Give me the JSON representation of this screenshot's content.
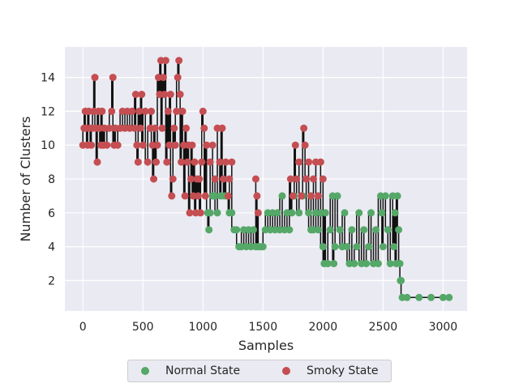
{
  "chart_data": {
    "type": "line",
    "title": "",
    "xlabel": "Samples",
    "ylabel": "Number of Clusters",
    "xlim": [
      -150,
      3200
    ],
    "ylim": [
      0.2,
      15.8
    ],
    "xticks": [
      0,
      500,
      1000,
      1500,
      2000,
      2500,
      3000
    ],
    "yticks": [
      2,
      4,
      6,
      8,
      10,
      12,
      14
    ],
    "grid": true,
    "legend_position": "bottom-center",
    "colors": {
      "background": "#eaeaf2",
      "grid": "#ffffff",
      "line": "#111111",
      "normal": "#55a868",
      "smoky": "#c44e52"
    },
    "series": [
      {
        "name": "Normal State",
        "points": [
          [
            1040,
            6
          ],
          [
            1050,
            5
          ],
          [
            1060,
            6
          ],
          [
            1080,
            7
          ],
          [
            1100,
            7
          ],
          [
            1120,
            6
          ],
          [
            1150,
            7
          ],
          [
            1180,
            7
          ],
          [
            1200,
            7
          ],
          [
            1220,
            6
          ],
          [
            1240,
            6
          ],
          [
            1260,
            5
          ],
          [
            1280,
            5
          ],
          [
            1300,
            4
          ],
          [
            1320,
            4
          ],
          [
            1340,
            5
          ],
          [
            1360,
            4
          ],
          [
            1380,
            5
          ],
          [
            1400,
            4
          ],
          [
            1420,
            5
          ],
          [
            1440,
            4
          ],
          [
            1460,
            4
          ],
          [
            1480,
            4
          ],
          [
            1500,
            4
          ],
          [
            1520,
            5
          ],
          [
            1540,
            6
          ],
          [
            1560,
            5
          ],
          [
            1580,
            6
          ],
          [
            1600,
            5
          ],
          [
            1620,
            6
          ],
          [
            1640,
            5
          ],
          [
            1660,
            7
          ],
          [
            1680,
            5
          ],
          [
            1700,
            6
          ],
          [
            1720,
            5
          ],
          [
            1740,
            6
          ],
          [
            1760,
            7
          ],
          [
            1800,
            6
          ],
          [
            1830,
            7
          ],
          [
            1880,
            6
          ],
          [
            1900,
            5
          ],
          [
            1920,
            5
          ],
          [
            1940,
            6
          ],
          [
            1960,
            5
          ],
          [
            1980,
            6
          ],
          [
            2000,
            4
          ],
          [
            2010,
            3
          ],
          [
            2020,
            6
          ],
          [
            2040,
            3
          ],
          [
            2060,
            5
          ],
          [
            2080,
            7
          ],
          [
            2090,
            3
          ],
          [
            2100,
            4
          ],
          [
            2120,
            7
          ],
          [
            2140,
            5
          ],
          [
            2160,
            4
          ],
          [
            2180,
            6
          ],
          [
            2200,
            4
          ],
          [
            2220,
            3
          ],
          [
            2240,
            5
          ],
          [
            2260,
            3
          ],
          [
            2280,
            4
          ],
          [
            2300,
            6
          ],
          [
            2320,
            3
          ],
          [
            2340,
            5
          ],
          [
            2360,
            3
          ],
          [
            2380,
            4
          ],
          [
            2400,
            6
          ],
          [
            2420,
            3
          ],
          [
            2440,
            5
          ],
          [
            2460,
            3
          ],
          [
            2480,
            7
          ],
          [
            2490,
            6
          ],
          [
            2500,
            4
          ],
          [
            2520,
            7
          ],
          [
            2540,
            5
          ],
          [
            2560,
            3
          ],
          [
            2580,
            7
          ],
          [
            2590,
            4
          ],
          [
            2600,
            6
          ],
          [
            2610,
            3
          ],
          [
            2620,
            7
          ],
          [
            2630,
            5
          ],
          [
            2640,
            3
          ],
          [
            2645,
            2
          ],
          [
            2650,
            2
          ],
          [
            2660,
            1
          ],
          [
            2700,
            1
          ],
          [
            2800,
            1
          ],
          [
            2900,
            1
          ],
          [
            3000,
            1
          ],
          [
            3050,
            1
          ]
        ]
      },
      {
        "name": "Smoky State",
        "points": [
          [
            0,
            10
          ],
          [
            10,
            11
          ],
          [
            20,
            12
          ],
          [
            30,
            11
          ],
          [
            40,
            10
          ],
          [
            50,
            12
          ],
          [
            60,
            11
          ],
          [
            70,
            10
          ],
          [
            80,
            11
          ],
          [
            90,
            12
          ],
          [
            100,
            14
          ],
          [
            110,
            11
          ],
          [
            120,
            9
          ],
          [
            130,
            12
          ],
          [
            140,
            11
          ],
          [
            150,
            10
          ],
          [
            160,
            12
          ],
          [
            170,
            10
          ],
          [
            180,
            11
          ],
          [
            200,
            10
          ],
          [
            220,
            11
          ],
          [
            240,
            12
          ],
          [
            250,
            14
          ],
          [
            260,
            10
          ],
          [
            270,
            11
          ],
          [
            290,
            10
          ],
          [
            310,
            11
          ],
          [
            330,
            12
          ],
          [
            350,
            11
          ],
          [
            370,
            12
          ],
          [
            390,
            11
          ],
          [
            410,
            12
          ],
          [
            430,
            11
          ],
          [
            440,
            13
          ],
          [
            450,
            10
          ],
          [
            460,
            9
          ],
          [
            470,
            12
          ],
          [
            480,
            11
          ],
          [
            490,
            13
          ],
          [
            500,
            10
          ],
          [
            520,
            12
          ],
          [
            540,
            9
          ],
          [
            560,
            11
          ],
          [
            570,
            12
          ],
          [
            580,
            10
          ],
          [
            590,
            8
          ],
          [
            600,
            11
          ],
          [
            610,
            9
          ],
          [
            620,
            10
          ],
          [
            630,
            14
          ],
          [
            640,
            13
          ],
          [
            650,
            15
          ],
          [
            660,
            11
          ],
          [
            670,
            14
          ],
          [
            680,
            13
          ],
          [
            690,
            15
          ],
          [
            700,
            9
          ],
          [
            710,
            12
          ],
          [
            720,
            10
          ],
          [
            730,
            13
          ],
          [
            740,
            7
          ],
          [
            750,
            8
          ],
          [
            760,
            11
          ],
          [
            770,
            10
          ],
          [
            780,
            12
          ],
          [
            790,
            14
          ],
          [
            800,
            15
          ],
          [
            810,
            13
          ],
          [
            820,
            9
          ],
          [
            830,
            12
          ],
          [
            840,
            10
          ],
          [
            850,
            7
          ],
          [
            860,
            11
          ],
          [
            870,
            9
          ],
          [
            880,
            10
          ],
          [
            890,
            6
          ],
          [
            900,
            8
          ],
          [
            910,
            10
          ],
          [
            920,
            7
          ],
          [
            930,
            9
          ],
          [
            940,
            6
          ],
          [
            950,
            8
          ],
          [
            960,
            7
          ],
          [
            970,
            8
          ],
          [
            980,
            6
          ],
          [
            990,
            9
          ],
          [
            1000,
            12
          ],
          [
            1010,
            11
          ],
          [
            1020,
            7
          ],
          [
            1030,
            10
          ],
          [
            1060,
            9
          ],
          [
            1080,
            10
          ],
          [
            1100,
            8
          ],
          [
            1120,
            11
          ],
          [
            1140,
            9
          ],
          [
            1160,
            11
          ],
          [
            1170,
            8
          ],
          [
            1190,
            9
          ],
          [
            1210,
            7
          ],
          [
            1220,
            8
          ],
          [
            1240,
            9
          ],
          [
            1440,
            8
          ],
          [
            1450,
            7
          ],
          [
            1460,
            6
          ],
          [
            1730,
            8
          ],
          [
            1750,
            7
          ],
          [
            1770,
            10
          ],
          [
            1780,
            8
          ],
          [
            1800,
            9
          ],
          [
            1820,
            7
          ],
          [
            1840,
            11
          ],
          [
            1850,
            10
          ],
          [
            1860,
            8
          ],
          [
            1880,
            9
          ],
          [
            1900,
            7
          ],
          [
            1920,
            8
          ],
          [
            1940,
            9
          ],
          [
            1960,
            7
          ],
          [
            1980,
            9
          ],
          [
            2000,
            8
          ]
        ]
      }
    ]
  }
}
